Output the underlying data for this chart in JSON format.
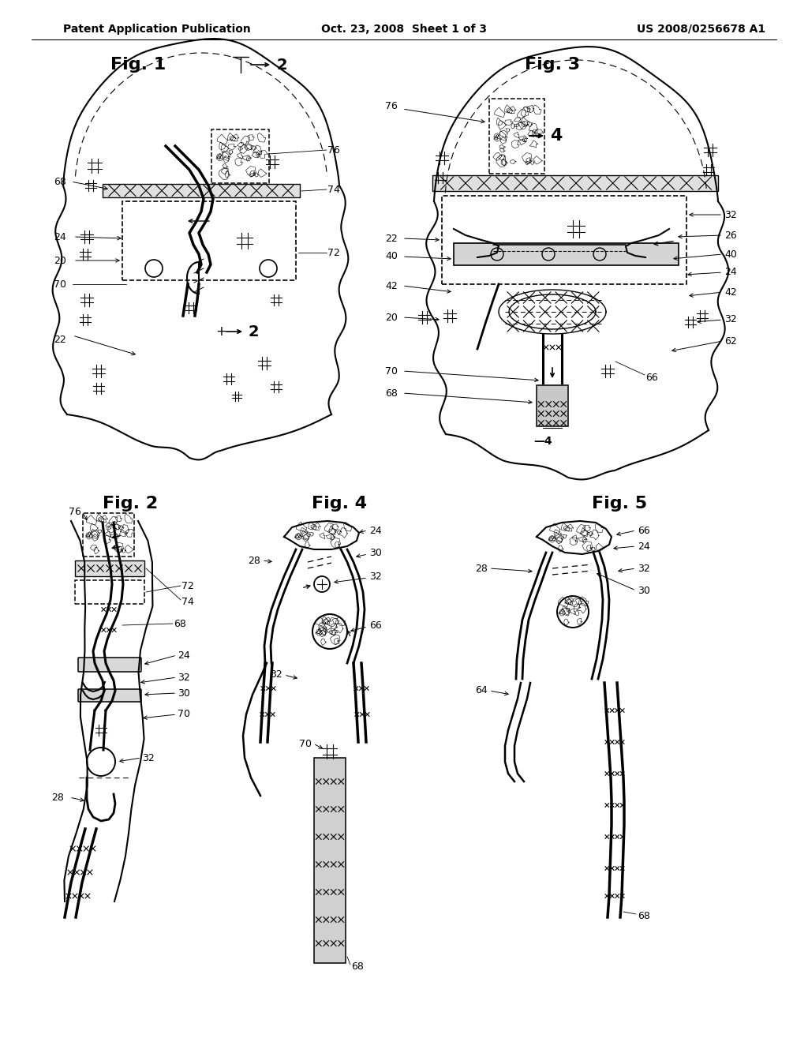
{
  "page_title_left": "Patent Application Publication",
  "page_title_center": "Oct. 23, 2008  Sheet 1 of 3",
  "page_title_right": "US 2008/0256678 A1",
  "background_color": "#ffffff",
  "line_color": "#000000",
  "fig1_title": "Fig. 1",
  "fig2_title": "Fig. 2",
  "fig3_title": "Fig. 3",
  "fig4_title": "Fig. 4",
  "fig5_title": "Fig. 5",
  "header_fontsize": 10,
  "fig_title_fontsize": 16,
  "label_fontsize": 9
}
